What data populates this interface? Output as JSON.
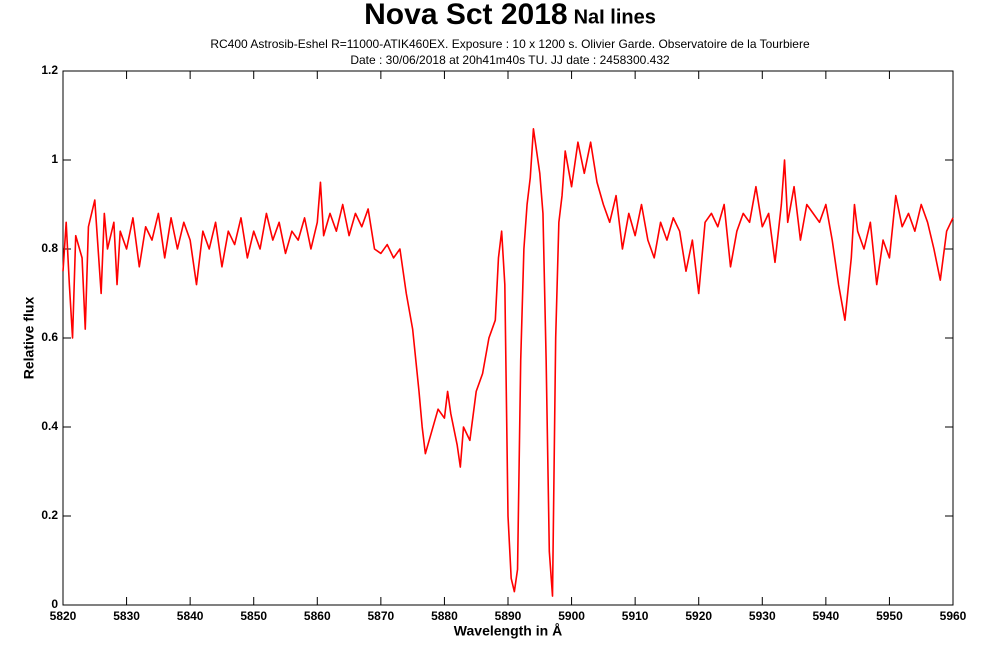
{
  "chart_data": {
    "type": "line",
    "title": "Nova Sct 2018",
    "title_note": "NaI lines",
    "subtitle_lines": [
      "RC400 Astrosib-Eshel R=11000-ATIK460EX. Exposure : 10 x 1200 s. Olivier Garde. Observatoire de la Tourbiere",
      "Date : 30/06/2018 at 20h41m40s TU. JJ date : 2458300.432"
    ],
    "x_label": "Wavelength in Å",
    "y_label": "Relative flux",
    "xlim": [
      5820,
      5960
    ],
    "xticks": [
      5820,
      5830,
      5840,
      5850,
      5860,
      5870,
      5880,
      5890,
      5900,
      5910,
      5920,
      5930,
      5940,
      5950,
      5960
    ],
    "ylim": [
      0,
      1.2
    ],
    "yticks": [
      0,
      0.2,
      0.4,
      0.6,
      0.8,
      1,
      1.2
    ],
    "grid": false,
    "series": [
      {
        "color": "#ff0000",
        "x": [
          5820,
          5820.5,
          5821,
          5821.5,
          5822,
          5823,
          5823.5,
          5824,
          5825,
          5826,
          5826.5,
          5827,
          5828,
          5828.5,
          5829,
          5830,
          5831,
          5832,
          5833,
          5834,
          5835,
          5836,
          5837,
          5838,
          5839,
          5840,
          5841,
          5842,
          5843,
          5844,
          5845,
          5846,
          5847,
          5848,
          5849,
          5850,
          5851,
          5852,
          5853,
          5854,
          5855,
          5856,
          5857,
          5858,
          5859,
          5860,
          5860.5,
          5861,
          5862,
          5863,
          5864,
          5865,
          5866,
          5867,
          5868,
          5869,
          5870,
          5871,
          5872,
          5873,
          5874,
          5875,
          5876,
          5876.5,
          5877,
          5878,
          5879,
          5880,
          5880.5,
          5881,
          5882,
          5882.5,
          5883,
          5884,
          5885,
          5886,
          5887,
          5888,
          5888.5,
          5889,
          5889.5,
          5890,
          5890.5,
          5891,
          5891.5,
          5892,
          5892.5,
          5893,
          5893.5,
          5894,
          5894.5,
          5895,
          5895.5,
          5896,
          5896.5,
          5897,
          5897.5,
          5898,
          5898.5,
          5899,
          5900,
          5901,
          5902,
          5903,
          5904,
          5905,
          5906,
          5907,
          5908,
          5909,
          5910,
          5911,
          5912,
          5913,
          5914,
          5915,
          5916,
          5917,
          5918,
          5919,
          5920,
          5921,
          5922,
          5923,
          5924,
          5925,
          5926,
          5927,
          5928,
          5929,
          5930,
          5931,
          5932,
          5933,
          5933.5,
          5934,
          5935,
          5936,
          5937,
          5938,
          5939,
          5940,
          5941,
          5942,
          5943,
          5944,
          5944.5,
          5945,
          5946,
          5947,
          5948,
          5949,
          5950,
          5951,
          5952,
          5953,
          5954,
          5955,
          5956,
          5957,
          5958,
          5959,
          5960
        ],
        "values": [
          0.75,
          0.86,
          0.72,
          0.6,
          0.83,
          0.78,
          0.62,
          0.85,
          0.91,
          0.7,
          0.88,
          0.8,
          0.86,
          0.72,
          0.84,
          0.8,
          0.87,
          0.76,
          0.85,
          0.82,
          0.88,
          0.78,
          0.87,
          0.8,
          0.86,
          0.82,
          0.72,
          0.84,
          0.8,
          0.86,
          0.76,
          0.84,
          0.81,
          0.87,
          0.78,
          0.84,
          0.8,
          0.88,
          0.82,
          0.86,
          0.79,
          0.84,
          0.82,
          0.87,
          0.8,
          0.86,
          0.95,
          0.83,
          0.88,
          0.84,
          0.9,
          0.83,
          0.88,
          0.85,
          0.89,
          0.8,
          0.79,
          0.81,
          0.78,
          0.8,
          0.7,
          0.62,
          0.48,
          0.4,
          0.34,
          0.39,
          0.44,
          0.42,
          0.48,
          0.43,
          0.36,
          0.31,
          0.4,
          0.37,
          0.48,
          0.52,
          0.6,
          0.64,
          0.78,
          0.84,
          0.72,
          0.2,
          0.06,
          0.03,
          0.08,
          0.55,
          0.8,
          0.9,
          0.96,
          1.07,
          1.02,
          0.97,
          0.88,
          0.55,
          0.12,
          0.02,
          0.6,
          0.86,
          0.92,
          1.02,
          0.94,
          1.04,
          0.97,
          1.04,
          0.95,
          0.9,
          0.86,
          0.92,
          0.8,
          0.88,
          0.83,
          0.9,
          0.82,
          0.78,
          0.86,
          0.82,
          0.87,
          0.84,
          0.75,
          0.82,
          0.7,
          0.86,
          0.88,
          0.85,
          0.9,
          0.76,
          0.84,
          0.88,
          0.86,
          0.94,
          0.85,
          0.88,
          0.77,
          0.9,
          1.0,
          0.86,
          0.94,
          0.82,
          0.9,
          0.88,
          0.86,
          0.9,
          0.82,
          0.72,
          0.64,
          0.78,
          0.9,
          0.84,
          0.8,
          0.86,
          0.72,
          0.82,
          0.78,
          0.92,
          0.85,
          0.88,
          0.84,
          0.9,
          0.86,
          0.8,
          0.73,
          0.84,
          0.87
        ]
      }
    ]
  }
}
